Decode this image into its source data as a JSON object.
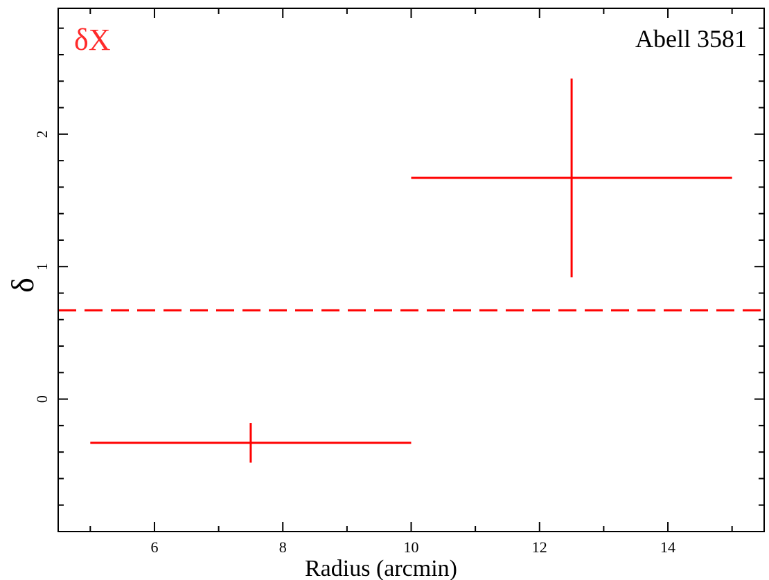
{
  "chart_data": {
    "type": "scatter",
    "title": "",
    "annotation": "Abell 3581",
    "series_label": "δX",
    "xlabel": "Radius (arcmin)",
    "ylabel": "δ",
    "xlim": [
      4.5,
      15.5
    ],
    "ylim": [
      -1.0,
      2.95
    ],
    "x_ticks": [
      6,
      8,
      10,
      12,
      14
    ],
    "y_ticks": [
      0,
      1,
      2
    ],
    "grid": false,
    "series": [
      {
        "color": "#ff0000",
        "points": [
          {
            "x": 7.5,
            "y": -0.33,
            "x_err": 2.5,
            "y_err_low": 0.15,
            "y_err_high": 0.15
          },
          {
            "x": 12.5,
            "y": 1.67,
            "x_err": 2.5,
            "y_err_low": 0.75,
            "y_err_high": 0.75
          }
        ]
      }
    ],
    "reference_line": {
      "y": 0.67,
      "style": "dashed",
      "color": "#ff0000"
    }
  }
}
